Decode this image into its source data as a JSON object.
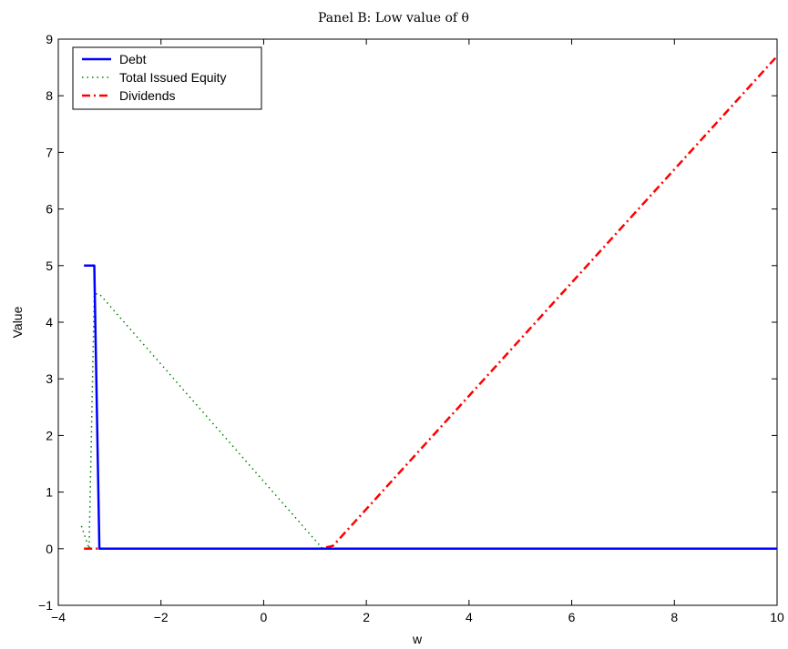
{
  "chart_data": {
    "type": "line",
    "title": "Panel B: Low value of θ",
    "xlabel": "w",
    "ylabel": "Value",
    "xlim": [
      -4,
      10
    ],
    "ylim": [
      -1,
      9
    ],
    "xticks": [
      -4,
      -2,
      0,
      2,
      4,
      6,
      8,
      10
    ],
    "yticks": [
      -1,
      0,
      1,
      2,
      3,
      4,
      5,
      6,
      7,
      8,
      9
    ],
    "xtick_labels": [
      "−4",
      "−2",
      "0",
      "2",
      "4",
      "6",
      "8",
      "10"
    ],
    "ytick_labels": [
      "−1",
      "0",
      "1",
      "2",
      "3",
      "4",
      "5",
      "6",
      "7",
      "8",
      "9"
    ],
    "grid": false,
    "legend_position": "top-left",
    "series": [
      {
        "name": "Debt",
        "color": "#0000ff",
        "style": "solid",
        "x": [
          -3.5,
          -3.35,
          -3.3,
          -3.2,
          10
        ],
        "y": [
          5.0,
          5.0,
          5.0,
          0.0,
          0.0
        ]
      },
      {
        "name": "Total Issued Equity",
        "color": "#008000",
        "style": "dotted",
        "x": [
          -3.55,
          -3.4,
          -3.3,
          -3.2,
          1.15,
          1.35,
          10
        ],
        "y": [
          0.4,
          0.0,
          4.5,
          4.5,
          0.0,
          0.0,
          0.0
        ]
      },
      {
        "name": "Dividends",
        "color": "#ff0000",
        "style": "dashdot",
        "x": [
          -3.5,
          1.1,
          1.35,
          10
        ],
        "y": [
          0.0,
          0.0,
          0.05,
          8.7
        ]
      }
    ]
  }
}
